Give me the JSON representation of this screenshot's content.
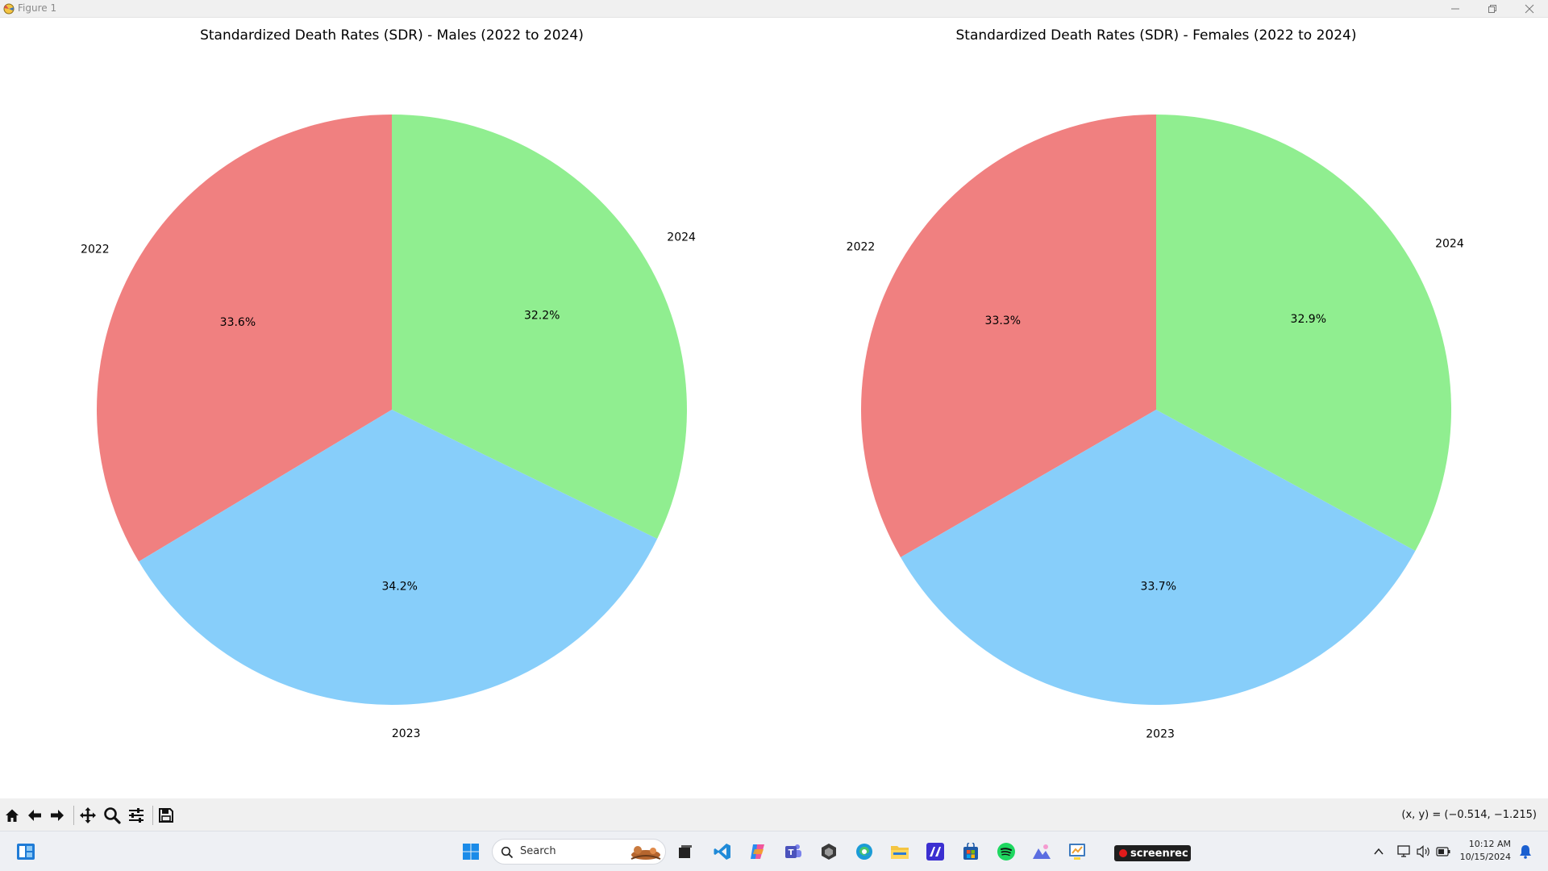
{
  "window": {
    "title": "Figure 1"
  },
  "chart_data": [
    {
      "type": "pie",
      "title": "Standardized Death Rates (SDR) - Males (2022 to 2024)",
      "categories": [
        "2022",
        "2023",
        "2024"
      ],
      "values": [
        33.6,
        34.2,
        32.2
      ],
      "value_labels": [
        "33.6%",
        "34.2%",
        "32.2%"
      ],
      "colors": [
        "#f08080",
        "#87cefa",
        "#90ee90"
      ],
      "start_angle_deg": 90,
      "direction": "counterclockwise"
    },
    {
      "type": "pie",
      "title": "Standardized Death Rates (SDR) - Females (2022 to 2024)",
      "categories": [
        "2022",
        "2023",
        "2024"
      ],
      "values": [
        33.3,
        33.7,
        32.9
      ],
      "value_labels": [
        "33.3%",
        "33.7%",
        "32.9%"
      ],
      "colors": [
        "#f08080",
        "#87cefa",
        "#90ee90"
      ],
      "start_angle_deg": 90,
      "direction": "counterclockwise"
    }
  ],
  "toolbar": {
    "buttons": [
      "home-icon",
      "back-icon",
      "forward-icon",
      "pan-icon",
      "zoom-icon",
      "configure-subplots-icon",
      "save-icon"
    ],
    "coords": "(x, y) = (−0.514, −1.215)"
  },
  "taskbar": {
    "search_label": "Search",
    "screenrec_label": "screenrec",
    "time": "10:12 AM",
    "date": "10/15/2024"
  }
}
